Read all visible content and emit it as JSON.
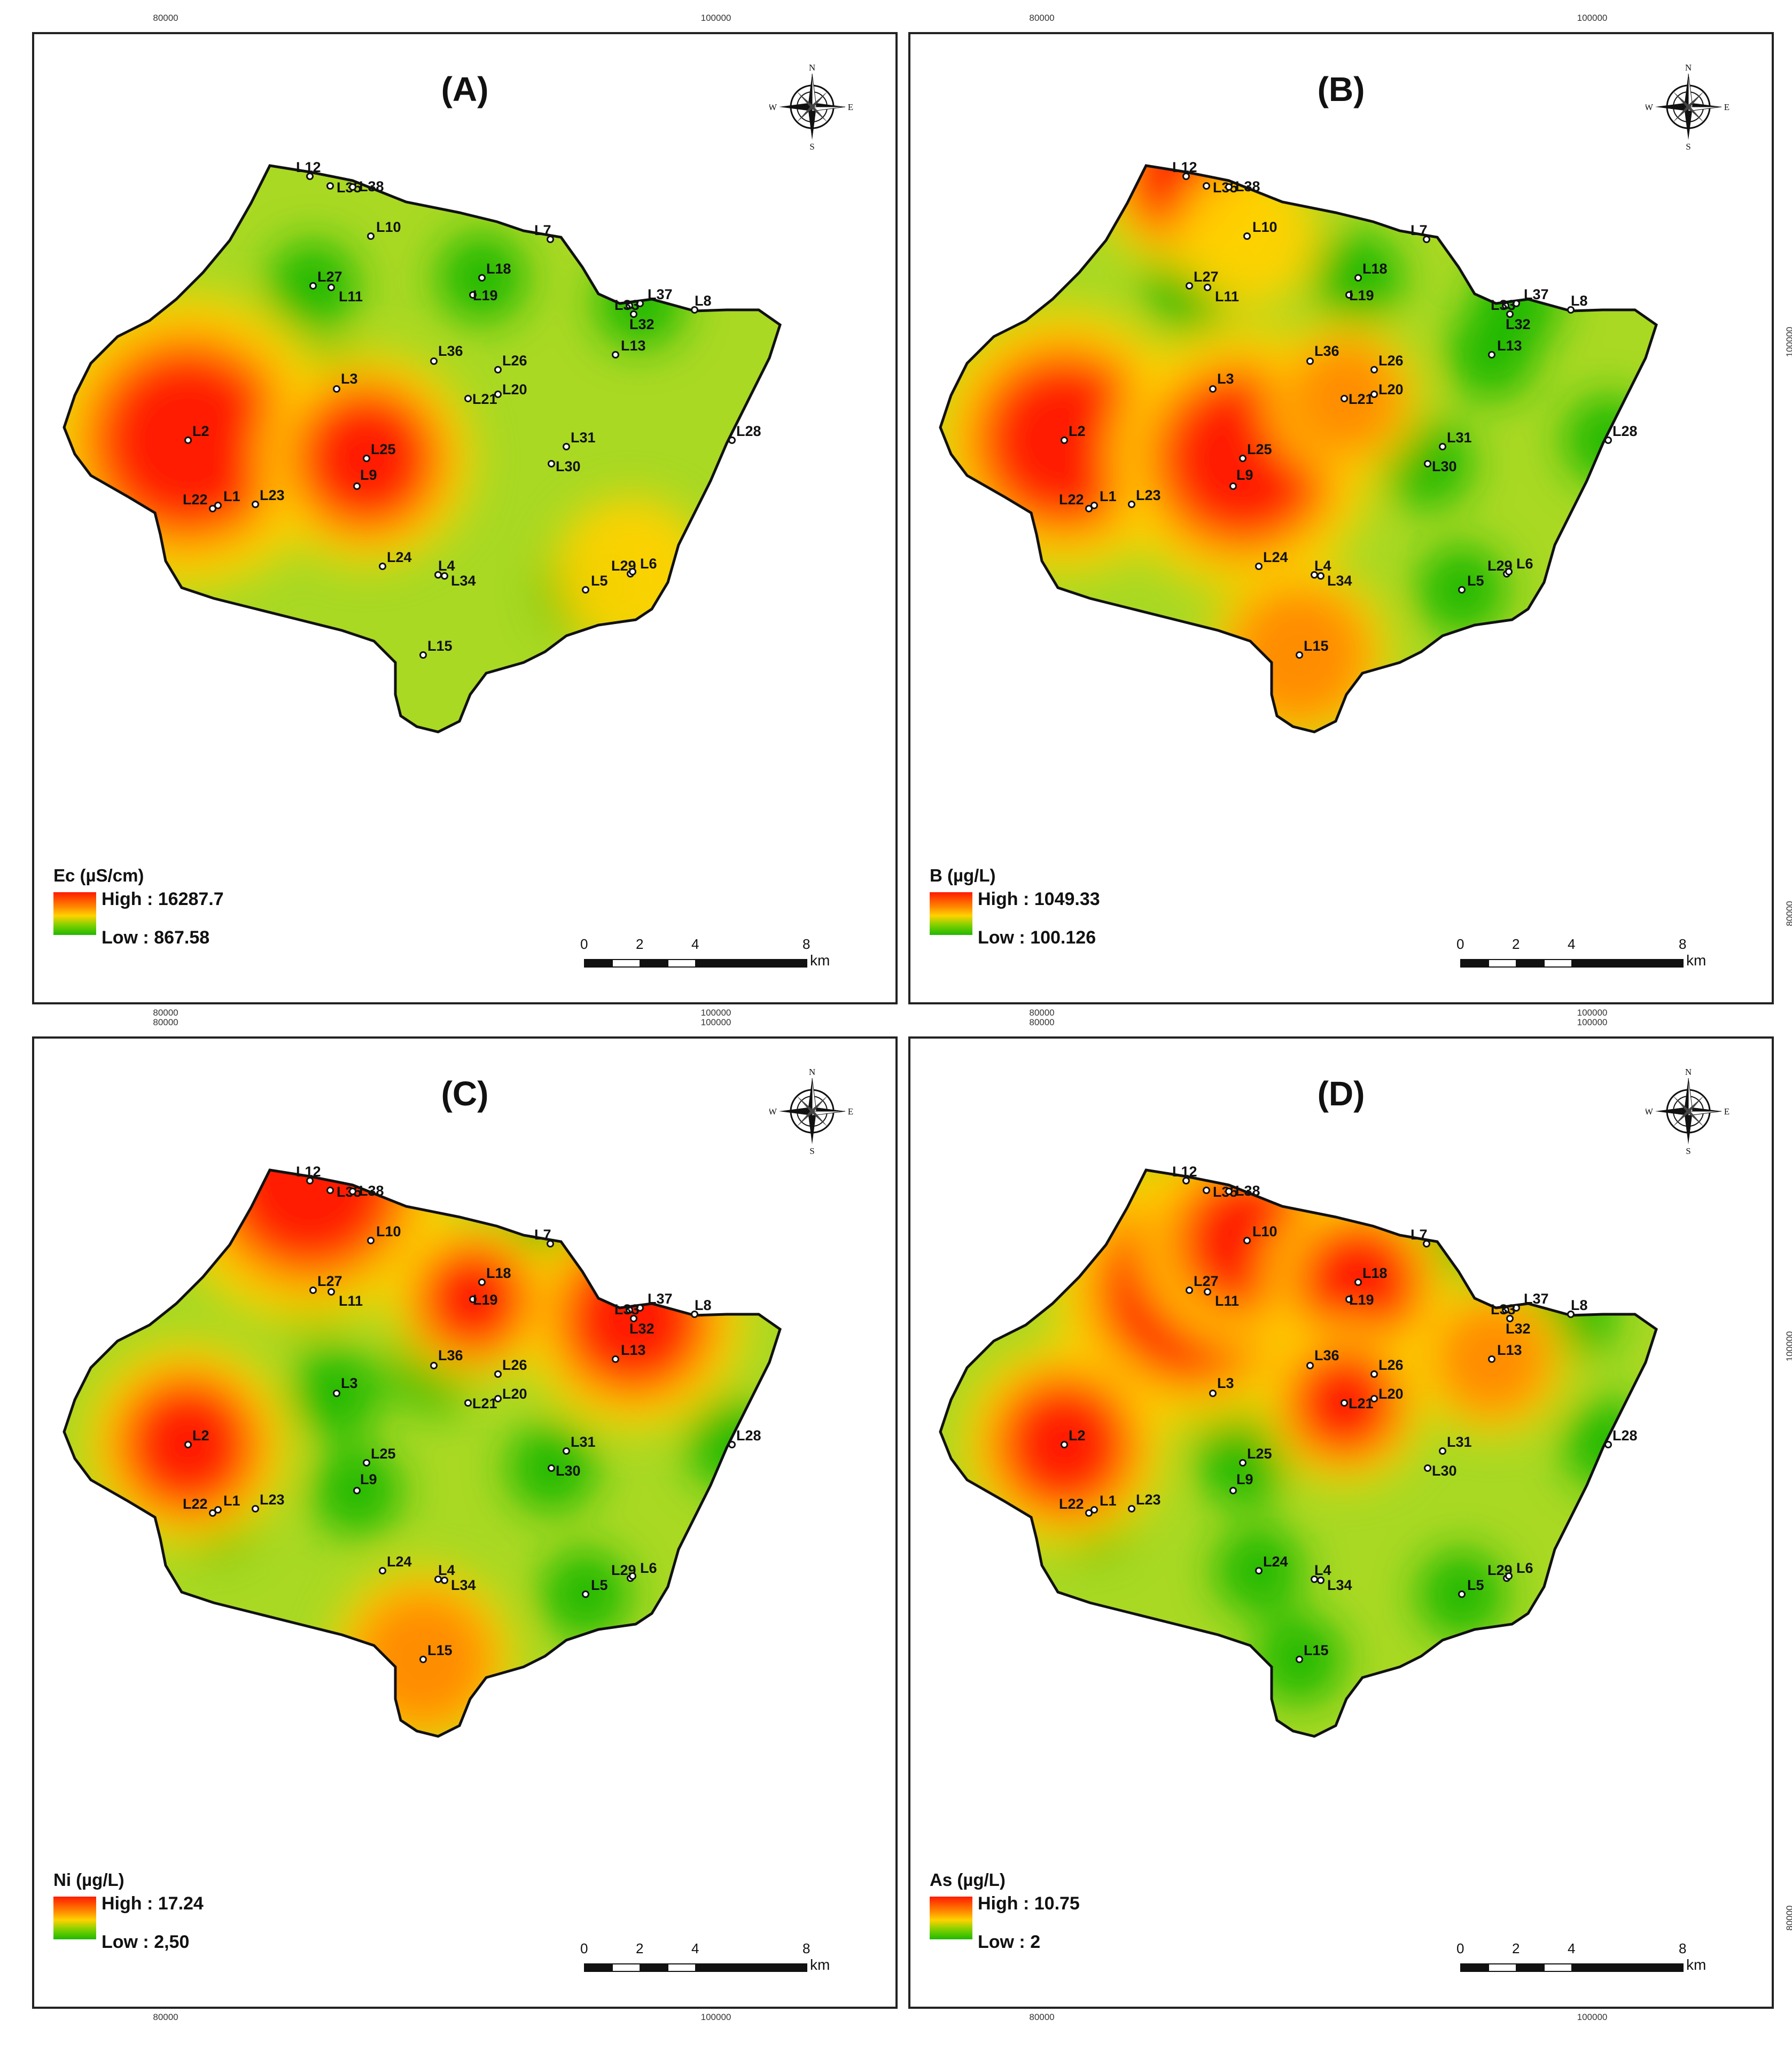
{
  "panels": [
    {
      "letter": "(A)",
      "legend_title": "Ec (µS/cm)",
      "high": "High : 16287.7",
      "low": "Low : 867.58",
      "hotspots": [
        {
          "site": "L2",
          "level": 1.0,
          "size": 1.0
        },
        {
          "site": "L25",
          "level": 0.85,
          "size": 0.6
        },
        {
          "site": "L29",
          "level": 0.3,
          "size": 0.3
        }
      ],
      "greenspots": [
        "L27",
        "L18",
        "L3",
        "L5",
        "L37",
        "L22"
      ]
    },
    {
      "letter": "(B)",
      "legend_title": "B (µg/L)",
      "high": "High : 1049.33",
      "low": "Low : 100.126",
      "hotspots": [
        {
          "site": "L2",
          "level": 1.0,
          "size": 0.85
        },
        {
          "site": "L25",
          "level": 1.0,
          "size": 0.85
        },
        {
          "site": "L12",
          "level": 0.8,
          "size": 0.45
        },
        {
          "site": "L15",
          "level": 0.7,
          "size": 0.45
        },
        {
          "site": "L21",
          "level": 0.6,
          "size": 0.3
        },
        {
          "site": "L10",
          "level": 0.5,
          "size": 0.25
        }
      ],
      "greenspots": [
        "L27",
        "L18",
        "L24",
        "L30",
        "L5",
        "L37",
        "L13",
        "L28"
      ]
    },
    {
      "letter": "(C)",
      "legend_title": "Ni (µg/L)",
      "high": "High : 17.24",
      "low": "Low : 2,50",
      "hotspots": [
        {
          "site": "L12",
          "level": 1.0,
          "size": 0.95
        },
        {
          "site": "L2",
          "level": 0.95,
          "size": 0.55
        },
        {
          "site": "L32",
          "level": 0.9,
          "size": 0.65
        },
        {
          "site": "L19",
          "level": 0.85,
          "size": 0.35
        },
        {
          "site": "L15",
          "level": 0.65,
          "size": 0.45
        }
      ],
      "greenspots": [
        "L27",
        "L3",
        "L22",
        "L30",
        "L5",
        "L28",
        "L10",
        "L7",
        "L9",
        "L36"
      ]
    },
    {
      "letter": "(D)",
      "legend_title": "As (µg/L)",
      "high": "High : 10.75",
      "low": "Low : 2",
      "hotspots": [
        {
          "site": "L27",
          "level": 1.0,
          "size": 0.9
        },
        {
          "site": "L10",
          "level": 0.95,
          "size": 0.6
        },
        {
          "site": "L18",
          "level": 0.95,
          "size": 0.45
        },
        {
          "site": "L2",
          "level": 1.0,
          "size": 0.55
        },
        {
          "site": "L21",
          "level": 0.8,
          "size": 0.35
        },
        {
          "site": "L13",
          "level": 0.7,
          "size": 0.3
        }
      ],
      "greenspots": [
        "L12",
        "L7",
        "L36",
        "L25",
        "L24",
        "L15",
        "L5",
        "L28",
        "L22",
        "L20",
        "L8",
        "L3"
      ]
    }
  ],
  "coords": {
    "x_left": "80000",
    "x_right": "100000",
    "y_upper": "100000",
    "y_lower": "80000"
  },
  "scale_bar": {
    "labels": [
      "0",
      "2",
      "4",
      "8"
    ],
    "unit": "km"
  },
  "north_arrow": {
    "n": "N",
    "s": "S",
    "e": "E",
    "w": "W"
  },
  "sites": [
    {
      "id": "L12",
      "label": "L12"
    },
    {
      "id": "L35",
      "label": "L35"
    },
    {
      "id": "L38",
      "label": "L38"
    },
    {
      "id": "L10",
      "label": "L10"
    },
    {
      "id": "L7",
      "label": "L7"
    },
    {
      "id": "L27",
      "label": "L27"
    },
    {
      "id": "L11",
      "label": "L11"
    },
    {
      "id": "L18",
      "label": "L18"
    },
    {
      "id": "L19",
      "label": "L19"
    },
    {
      "id": "L37",
      "label": "L37"
    },
    {
      "id": "L33",
      "label": "L33"
    },
    {
      "id": "L32",
      "label": "L32"
    },
    {
      "id": "L8",
      "label": "L8"
    },
    {
      "id": "L13",
      "label": "L13"
    },
    {
      "id": "L36",
      "label": "L36"
    },
    {
      "id": "L26",
      "label": "L26"
    },
    {
      "id": "L3",
      "label": "L3"
    },
    {
      "id": "L21",
      "label": "L21"
    },
    {
      "id": "L20",
      "label": "L20"
    },
    {
      "id": "L2",
      "label": "L2"
    },
    {
      "id": "L25",
      "label": "L25"
    },
    {
      "id": "L9",
      "label": "L9"
    },
    {
      "id": "L31",
      "label": "L31"
    },
    {
      "id": "L30",
      "label": "L30"
    },
    {
      "id": "L28",
      "label": "L28"
    },
    {
      "id": "L22",
      "label": "L22"
    },
    {
      "id": "L1",
      "label": "L1"
    },
    {
      "id": "L23",
      "label": "L23"
    },
    {
      "id": "L24",
      "label": "L24"
    },
    {
      "id": "L4",
      "label": "L4"
    },
    {
      "id": "L34",
      "label": "L34"
    },
    {
      "id": "L29",
      "label": "L29"
    },
    {
      "id": "L6",
      "label": "L6"
    },
    {
      "id": "L5",
      "label": "L5"
    },
    {
      "id": "L15",
      "label": "L15"
    }
  ],
  "colors": {
    "high": "#ff1a00",
    "mid": "#ffd200",
    "low": "#1fb800",
    "base": "#a9d923"
  }
}
